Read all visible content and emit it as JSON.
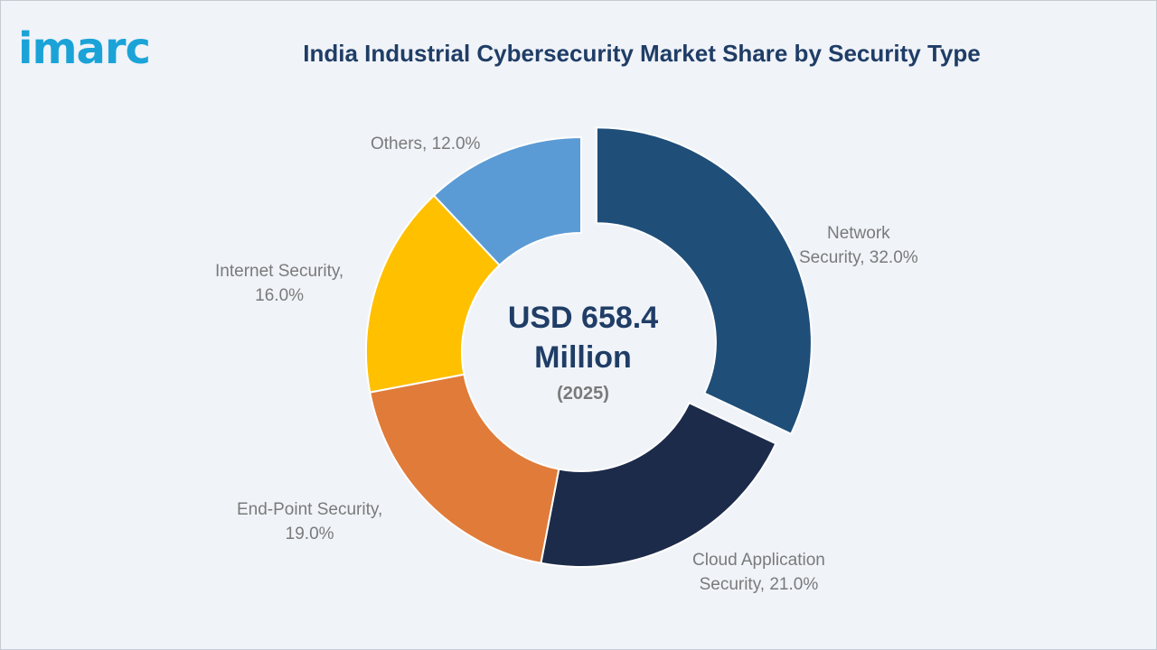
{
  "logo_text": "imarc",
  "chart_data": {
    "type": "pie",
    "title": "India Industrial Cybersecurity Market Share by Security Type",
    "center_value_line1": "USD 658.4",
    "center_value_line2": "Million",
    "center_year": "(2025)",
    "slices": [
      {
        "label_line1": "Network",
        "label_line2": "Security, 32.0%",
        "value": 32.0,
        "color": "#1f4e79",
        "exploded": true
      },
      {
        "label_line1": "Cloud Application",
        "label_line2": "Security, 21.0%",
        "value": 21.0,
        "color": "#1c2b4a",
        "exploded": false
      },
      {
        "label_line1": "End-Point Security,",
        "label_line2": "19.0%",
        "value": 19.0,
        "color": "#e07b39",
        "exploded": false
      },
      {
        "label_line1": "Internet Security,",
        "label_line2": "16.0%",
        "value": 16.0,
        "color": "#ffc000",
        "exploded": false
      },
      {
        "label_line1": "Others, 12.0%",
        "label_line2": "",
        "value": 12.0,
        "color": "#5b9bd5",
        "exploded": false
      }
    ]
  }
}
